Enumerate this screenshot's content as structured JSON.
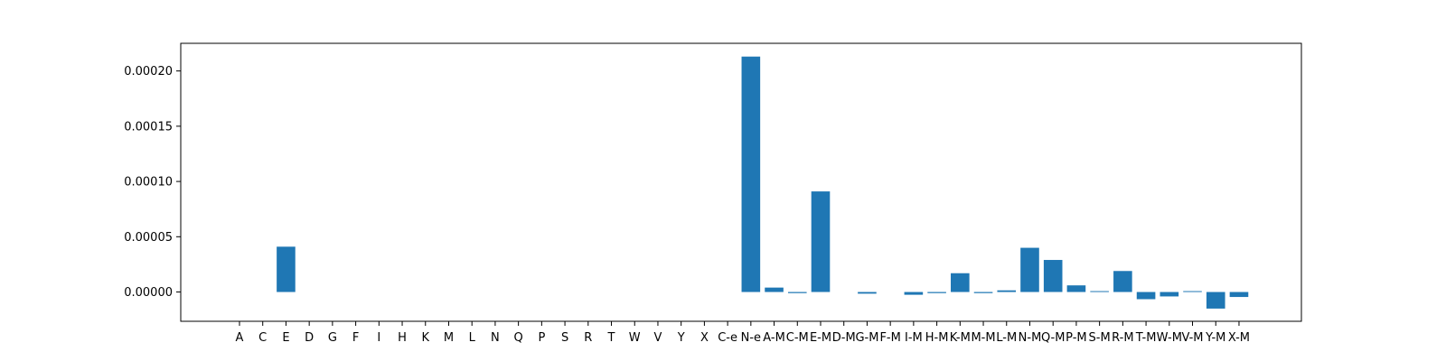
{
  "chart_data": {
    "type": "bar",
    "title": "",
    "xlabel": "",
    "ylabel": "",
    "ylim": [
      -2.65e-05,
      0.000225
    ],
    "yticks": [
      0.0002,
      0.00015,
      0.0001,
      5e-05,
      0.0
    ],
    "ytick_labels": [
      "0.00020",
      "0.00015",
      "0.00010",
      "0.00005",
      "0.00000"
    ],
    "grid": false,
    "categories": [
      "A",
      "C",
      "E",
      "D",
      "G",
      "F",
      "I",
      "H",
      "K",
      "M",
      "L",
      "N",
      "Q",
      "P",
      "S",
      "R",
      "T",
      "W",
      "V",
      "Y",
      "X",
      "C-e",
      "N-e",
      "A-M",
      "C-M",
      "E-M",
      "D-M",
      "G-M",
      "F-M",
      "I-M",
      "H-M",
      "K-M",
      "M-M",
      "L-M",
      "N-M",
      "Q-M",
      "P-M",
      "S-M",
      "R-M",
      "T-M",
      "W-M",
      "V-M",
      "Y-M",
      "X-M"
    ],
    "values": [
      0,
      0,
      4.1e-05,
      0,
      0,
      0,
      0,
      0,
      0,
      0,
      0,
      0,
      0,
      0,
      0,
      0,
      0,
      0,
      0,
      0,
      0,
      0,
      0.000213,
      4e-06,
      -1e-06,
      9.1e-05,
      0,
      -1.5e-06,
      0,
      -2.5e-06,
      -1e-06,
      1.7e-05,
      -1e-06,
      1.5e-06,
      4e-05,
      2.9e-05,
      6e-06,
      8e-07,
      1.9e-05,
      -6.5e-06,
      -4e-06,
      8e-07,
      -1.5e-05,
      -4.5e-06
    ],
    "colors": {
      "bar": "#1f77b4",
      "axes": "#000000",
      "background": "#ffffff"
    }
  }
}
